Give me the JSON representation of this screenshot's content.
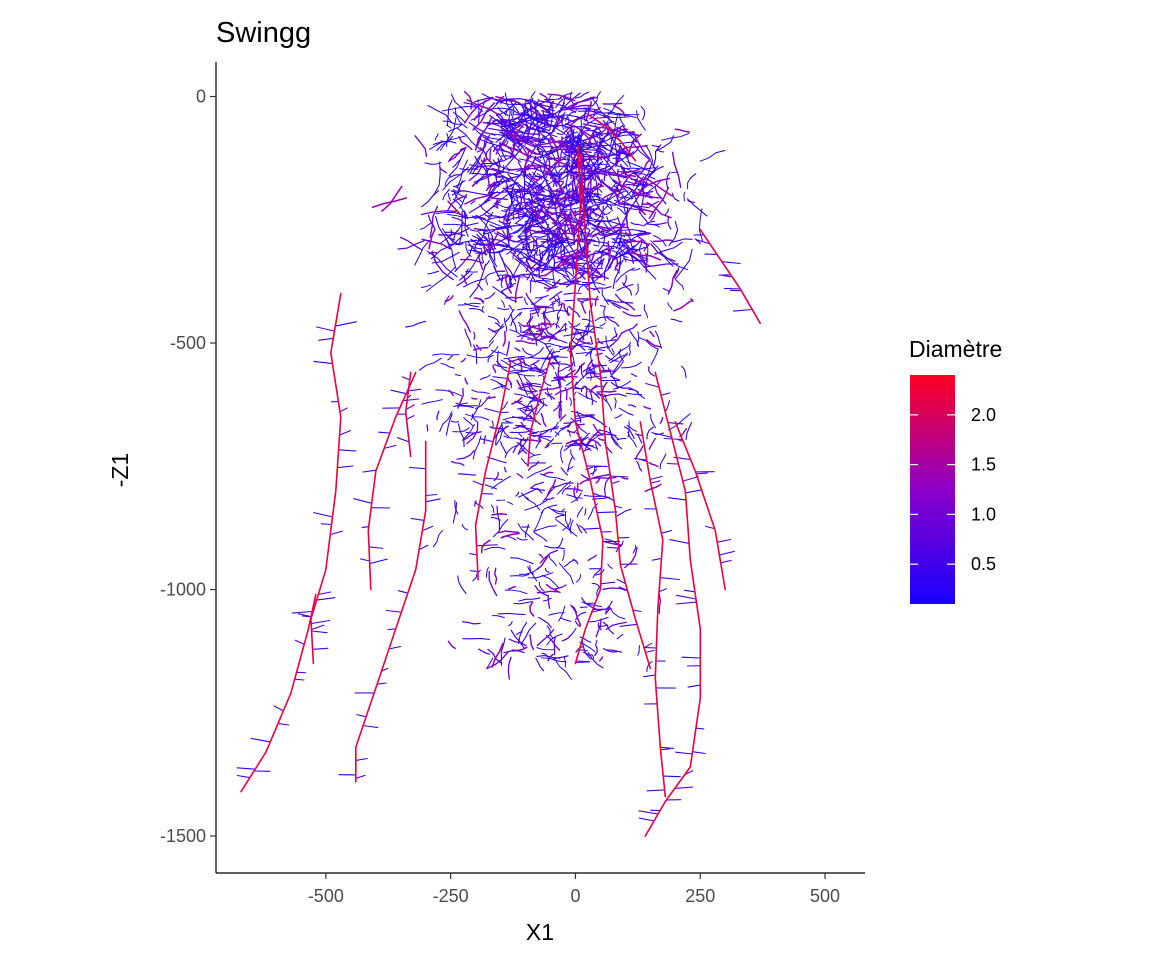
{
  "chart_data": {
    "type": "scatter",
    "title": "Swingg",
    "xlabel": "X1",
    "ylabel": "-Z1",
    "xlim": [
      -720,
      580
    ],
    "ylim": [
      -1575,
      70
    ],
    "x_ticks": [
      {
        "value": -500,
        "label": "-500"
      },
      {
        "value": -250,
        "label": "-250"
      },
      {
        "value": 0,
        "label": "0"
      },
      {
        "value": 250,
        "label": "250"
      },
      {
        "value": 500,
        "label": "500"
      }
    ],
    "y_ticks": [
      {
        "value": 0,
        "label": "0"
      },
      {
        "value": -500,
        "label": "-500"
      },
      {
        "value": -1000,
        "label": "-1000"
      },
      {
        "value": -1500,
        "label": "-1500"
      }
    ],
    "grid": false,
    "legend": {
      "title": "Diamètre",
      "placement": "right",
      "colors": {
        "low": "#1a00ff",
        "mid": "#8c00c8",
        "high": "#ff0022"
      },
      "range": [
        0.1,
        2.4
      ],
      "ticks": [
        {
          "value": 0.5,
          "label": "0.5"
        },
        {
          "value": 1.0,
          "label": "1.0"
        },
        {
          "value": 1.5,
          "label": "1.5"
        },
        {
          "value": 2.0,
          "label": "2.0"
        }
      ]
    },
    "taproots": [
      {
        "diameter": 2.2,
        "points": [
          [
            -525,
            -1150
          ],
          [
            -530,
            -1060
          ],
          [
            -500,
            -960
          ],
          [
            -480,
            -800
          ],
          [
            -470,
            -650
          ],
          [
            -490,
            -520
          ],
          [
            -470,
            -400
          ]
        ]
      },
      {
        "diameter": 2.2,
        "points": [
          [
            -670,
            -1410
          ],
          [
            -620,
            -1330
          ],
          [
            -570,
            -1210
          ],
          [
            -535,
            -1080
          ],
          [
            -520,
            -1010
          ]
        ]
      },
      {
        "diameter": 2.2,
        "points": [
          [
            -440,
            -1390
          ],
          [
            -440,
            -1320
          ],
          [
            -400,
            -1200
          ],
          [
            -360,
            -1080
          ],
          [
            -320,
            -960
          ],
          [
            -300,
            -840
          ],
          [
            -300,
            -700
          ]
        ]
      },
      {
        "diameter": 2.2,
        "points": [
          [
            -410,
            -1000
          ],
          [
            -415,
            -880
          ],
          [
            -400,
            -760
          ],
          [
            -360,
            -650
          ],
          [
            -320,
            -560
          ]
        ]
      },
      {
        "diameter": 2.2,
        "points": [
          [
            -195,
            -980
          ],
          [
            -200,
            -870
          ],
          [
            -180,
            -760
          ],
          [
            -150,
            -640
          ],
          [
            -130,
            -540
          ]
        ]
      },
      {
        "diameter": 2.0,
        "points": [
          [
            -95,
            -750
          ],
          [
            -90,
            -680
          ],
          [
            -70,
            -600
          ],
          [
            -50,
            -530
          ]
        ]
      },
      {
        "diameter": 2.2,
        "points": [
          [
            0,
            -1150
          ],
          [
            20,
            -1080
          ],
          [
            50,
            -1000
          ],
          [
            55,
            -900
          ],
          [
            30,
            -780
          ],
          [
            0,
            -660
          ],
          [
            -10,
            -520
          ],
          [
            0,
            -380
          ],
          [
            10,
            -220
          ],
          [
            5,
            -100
          ]
        ]
      },
      {
        "diameter": 2.2,
        "points": [
          [
            150,
            -1160
          ],
          [
            120,
            -1060
          ],
          [
            90,
            -950
          ],
          [
            80,
            -840
          ],
          [
            60,
            -700
          ],
          [
            50,
            -560
          ],
          [
            30,
            -420
          ],
          [
            20,
            -280
          ],
          [
            10,
            -120
          ]
        ]
      },
      {
        "diameter": 2.2,
        "points": [
          [
            140,
            -1500
          ],
          [
            180,
            -1430
          ],
          [
            230,
            -1360
          ],
          [
            250,
            -1220
          ],
          [
            250,
            -1080
          ],
          [
            230,
            -940
          ],
          [
            220,
            -800
          ],
          [
            190,
            -680
          ],
          [
            160,
            -560
          ]
        ]
      },
      {
        "diameter": 2.2,
        "points": [
          [
            180,
            -1420
          ],
          [
            170,
            -1320
          ],
          [
            160,
            -1180
          ],
          [
            165,
            -1040
          ],
          [
            175,
            -900
          ],
          [
            150,
            -780
          ],
          [
            130,
            -660
          ]
        ]
      },
      {
        "diameter": 2.2,
        "points": [
          [
            300,
            -1000
          ],
          [
            280,
            -880
          ],
          [
            240,
            -760
          ],
          [
            200,
            -660
          ]
        ]
      },
      {
        "diameter": 2.1,
        "points": [
          [
            370,
            -460
          ],
          [
            330,
            -390
          ],
          [
            290,
            -330
          ],
          [
            250,
            -270
          ]
        ]
      },
      {
        "diameter": 2.1,
        "points": [
          [
            30,
            -40
          ],
          [
            60,
            -60
          ],
          [
            90,
            -90
          ],
          [
            120,
            -130
          ]
        ]
      },
      {
        "diameter": 2.0,
        "points": [
          [
            -330,
            -730
          ],
          [
            -340,
            -640
          ],
          [
            -330,
            -560
          ]
        ]
      }
    ]
  }
}
